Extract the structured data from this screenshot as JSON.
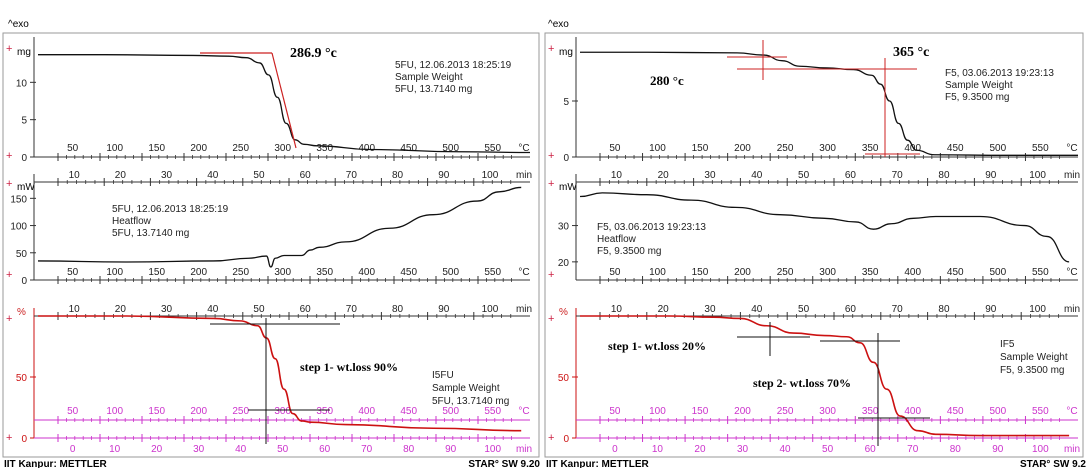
{
  "panels": [
    {
      "exo_label": "^exo",
      "footer_left": "IIT Kanpur: METTLER",
      "footer_right": "STAR° SW 9.20"
    },
    {
      "exo_label": "^exo",
      "footer_left": "IIT Kanpur: METTLER",
      "footer_right": "STAR° SW 9.2"
    }
  ],
  "colors": {
    "curve": "#111111",
    "tangent": "#cc2222",
    "marker": "#cc2244",
    "magenta": "#cc33cc",
    "tga_red": "#cc1111",
    "frame": "#888888"
  },
  "chart_data": [
    {
      "type": "line",
      "ylabel": "mg",
      "yticks": [
        0,
        5,
        10
      ],
      "ylim": [
        0,
        15
      ],
      "xticks": [
        "50",
        "100",
        "150",
        "200",
        "250",
        "300",
        "350",
        "400",
        "450",
        "500",
        "550"
      ],
      "xunit": "°C",
      "title_annotation": "286.9 °c",
      "legend": [
        "5FU, 12.06.2013 18:25:19",
        "Sample Weight",
        "5FU, 13.7140 mg"
      ],
      "series": [
        {
          "x": [
            25,
            100,
            200,
            240,
            260,
            275,
            285,
            295,
            305,
            315,
            325,
            340,
            400,
            500,
            580
          ],
          "y": [
            13.7,
            13.7,
            13.6,
            13.5,
            13.3,
            12.6,
            11,
            8,
            4.5,
            2.3,
            1.7,
            1.5,
            1.0,
            0.7,
            0.6
          ]
        }
      ],
      "xlim": [
        25,
        580
      ]
    },
    {
      "type": "line",
      "ylabel": "mW",
      "yticks": [
        0,
        50,
        100,
        150
      ],
      "ylim": [
        0,
        180
      ],
      "xticks": [
        "10",
        "20",
        "30",
        "40",
        "50",
        "60",
        "70",
        "80",
        "90",
        "100"
      ],
      "xunit": "min",
      "xticks2": [
        "50",
        "100",
        "150",
        "200",
        "250",
        "300",
        "350",
        "400",
        "450",
        "500",
        "550"
      ],
      "xunit2": "°C",
      "legend": [
        "5FU, 12.06.2013 18:25:19",
        "Heatflow",
        "5FU, 13.7140 mg"
      ],
      "series": [
        {
          "x": [
            0,
            20,
            40,
            48,
            52,
            53,
            54,
            56,
            60,
            62,
            64,
            70,
            80,
            90,
            100,
            105,
            110
          ],
          "y": [
            35,
            33,
            35,
            40,
            44,
            24,
            40,
            45,
            45,
            55,
            60,
            70,
            95,
            120,
            145,
            162,
            170
          ]
        }
      ],
      "xlim": [
        0,
        112
      ]
    },
    {
      "type": "line",
      "ylabel": "%",
      "yticks": [
        0,
        50
      ],
      "ylim": [
        0,
        100
      ],
      "xticks": [
        "10",
        "20",
        "30",
        "40",
        "50",
        "60",
        "70",
        "80",
        "90",
        "100"
      ],
      "xunit": "min",
      "xticks_bottom": [
        "0",
        "10",
        "20",
        "30",
        "40",
        "50",
        "60",
        "70",
        "80",
        "90",
        "100"
      ],
      "xunit_bottom": "min",
      "xticks_temp": [
        "50",
        "100",
        "150",
        "200",
        "250",
        "300",
        "350",
        "400",
        "450",
        "500",
        "550"
      ],
      "xunit_temp": "°C",
      "annotation": "step 1- wt.loss 90%",
      "legend": [
        "I5FU",
        "Sample Weight",
        "5FU, 13.7140 mg"
      ],
      "series": [
        {
          "x": [
            0,
            20,
            40,
            46,
            50,
            52,
            54,
            56,
            58,
            60,
            62,
            70,
            90,
            110
          ],
          "y": [
            100,
            100,
            98,
            96,
            92,
            82,
            65,
            40,
            20,
            14,
            13,
            11,
            8,
            6
          ]
        }
      ],
      "xlim": [
        0,
        112
      ]
    },
    {
      "type": "line",
      "ylabel": "mg",
      "yticks": [
        0,
        5
      ],
      "ylim": [
        0,
        10
      ],
      "xticks": [
        "50",
        "100",
        "150",
        "200",
        "250",
        "300",
        "350",
        "400",
        "450",
        "500",
        "550"
      ],
      "xunit": "°C",
      "title_annotation": "365 °c",
      "annotation": "280 °c",
      "legend": [
        "F5, 03.06.2013 19:23:13",
        "Sample Weight",
        "F5, 9.3500 mg"
      ],
      "series": [
        {
          "x": [
            25,
            100,
            200,
            230,
            250,
            270,
            300,
            330,
            350,
            360,
            370,
            380,
            390,
            400,
            420,
            500,
            580
          ],
          "y": [
            9.35,
            9.35,
            9.3,
            9.1,
            8.6,
            8.1,
            7.95,
            7.8,
            7.3,
            6.5,
            5,
            3,
            1.5,
            0.6,
            0.2,
            0.15,
            0.15
          ]
        }
      ],
      "xlim": [
        25,
        580
      ]
    },
    {
      "type": "line",
      "ylabel": "mW",
      "yticks": [
        20,
        30
      ],
      "ylim": [
        15,
        42
      ],
      "xticks": [
        "10",
        "20",
        "30",
        "40",
        "50",
        "60",
        "70",
        "80",
        "90",
        "100"
      ],
      "xunit": "min",
      "xticks2": [
        "50",
        "100",
        "150",
        "200",
        "250",
        "300",
        "350",
        "400",
        "450",
        "500",
        "550"
      ],
      "xunit2": "°C",
      "legend": [
        "F5, 03.06.2013 19:23:13",
        "Heatflow",
        "F5, 9.3500 mg"
      ],
      "series": [
        {
          "x": [
            0,
            5,
            15,
            25,
            35,
            45,
            55,
            62,
            66,
            70,
            75,
            80,
            90,
            100,
            105,
            110
          ],
          "y": [
            38,
            39,
            38.5,
            37,
            35,
            33,
            32,
            31,
            29,
            30.5,
            32,
            32.5,
            32.5,
            30,
            27,
            20
          ]
        }
      ],
      "xlim": [
        0,
        112
      ]
    },
    {
      "type": "line",
      "ylabel": "%",
      "yticks": [
        0,
        50
      ],
      "ylim": [
        0,
        100
      ],
      "xticks": [
        "10",
        "20",
        "30",
        "40",
        "50",
        "60",
        "70",
        "80",
        "90",
        "100"
      ],
      "xunit": "min",
      "xticks_bottom": [
        "0",
        "10",
        "20",
        "30",
        "40",
        "50",
        "60",
        "70",
        "80",
        "90",
        "100"
      ],
      "xunit_bottom": "min",
      "xticks_temp": [
        "50",
        "100",
        "150",
        "200",
        "250",
        "300",
        "350",
        "400",
        "450",
        "500",
        "550"
      ],
      "xunit_temp": "°C",
      "annotation": "step 1- wt.loss 20%",
      "annotation2": "step 2- wt.loss 70%",
      "legend": [
        "IF5",
        "Sample Weight",
        "F5, 9.3500 mg"
      ],
      "series": [
        {
          "x": [
            0,
            20,
            30,
            36,
            42,
            48,
            55,
            60,
            63,
            66,
            69,
            72,
            76,
            80,
            90,
            110
          ],
          "y": [
            100,
            100,
            99,
            98,
            92,
            86,
            84,
            83,
            78,
            62,
            40,
            18,
            6,
            3,
            2,
            2
          ]
        }
      ],
      "xlim": [
        0,
        112
      ]
    }
  ]
}
